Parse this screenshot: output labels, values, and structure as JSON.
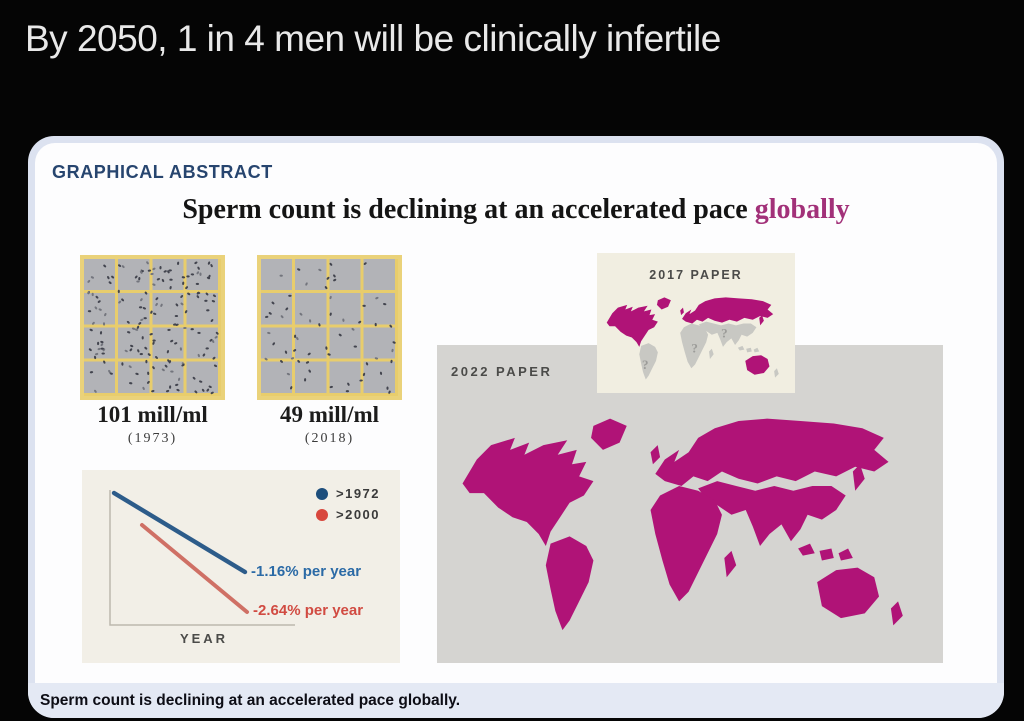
{
  "post": {
    "headline": "By 2050, 1 in 4 men will be clinically infertile"
  },
  "abstract_card": {
    "kicker": "GRAPHICAL ABSTRACT",
    "title_prefix": "Sperm count is declining at an accelerated pace ",
    "title_highlight": "globally",
    "caption": "Sperm count is declining at an accelerated pace globally.",
    "micrographs": [
      {
        "value": "101 mill/ml",
        "year": "(1973)",
        "dots": 165
      },
      {
        "value": "49 mill/ml",
        "year": "(2018)",
        "dots": 62
      }
    ],
    "maps": {
      "label_2017": "2017 PAPER",
      "label_2022": "2022 PAPER",
      "unknown_marks": [
        "?",
        "?",
        "?"
      ]
    }
  },
  "chart_data": {
    "type": "line",
    "title": "",
    "xlabel": "YEAR",
    "ylabel": "",
    "axes_numeric": false,
    "grid": false,
    "legend_position": "top-right",
    "series": [
      {
        "name": ">1972",
        "annotation": "-1.16% per year",
        "slope_pct_per_year": -1.16,
        "color": "#2d5c8a"
      },
      {
        "name": ">2000",
        "annotation": "-2.64% per year",
        "slope_pct_per_year": -2.64,
        "color": "#cf7065"
      }
    ]
  },
  "colors": {
    "background": "#050505",
    "headline_text": "#e9e9e9",
    "card_edge": "#dce2f0",
    "card_bg": "#fdfdfe",
    "kicker_navy": "#27456f",
    "title_text": "#141414",
    "title_highlight_magenta": "#a23179",
    "map_magenta": "#b01377",
    "map_unknown_gray": "#c8c8c3",
    "map_mark_gray": "#9c9c99",
    "panel_gray": "#d5d4d1",
    "panel_cream": "#f1eee1",
    "chart_bg": "#f2efe7",
    "axis_gray": "#bdb9ae",
    "line_blue": "#2d5c8a",
    "line_red": "#cf7065",
    "text_blue": "#2b6aa6",
    "text_red": "#d14b42",
    "dot_blue": "#1d4e7c",
    "dot_red": "#d8473d",
    "label_gray": "#4b4b49",
    "legend_text": "#3a3a3a",
    "micro_bg": "#b2b3b7",
    "micro_grid_yellow": "#e8cd6c",
    "micro_border_yellow": "#ead27a",
    "speck_dark": "#42444e",
    "speck_light": "#73757d",
    "caption_bg": "#e4e9f4",
    "caption_text": "#0d0d15"
  }
}
